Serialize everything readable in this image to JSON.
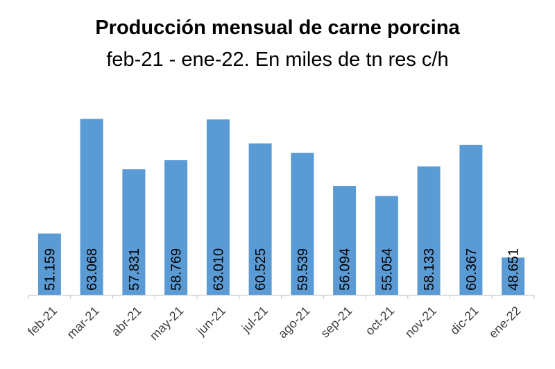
{
  "chart_data": {
    "type": "bar",
    "title": "Producción mensual de carne porcina",
    "subtitle": "feb-21 - ene-22. En miles de tn res c/h",
    "xlabel": "",
    "ylabel": "",
    "categories": [
      "feb-21",
      "mar-21",
      "abr-21",
      "may-21",
      "jun-21",
      "jul-21",
      "ago-21",
      "sep-21",
      "oct-21",
      "nov-21",
      "dic-21",
      "ene-22"
    ],
    "values": [
      51.159,
      63.068,
      57.831,
      58.769,
      63.01,
      60.525,
      59.539,
      56.094,
      55.054,
      58.133,
      60.367,
      48.651
    ],
    "data_labels": [
      "51.159",
      "63.068",
      "57.831",
      "58.769",
      "63.010",
      "60.525",
      "59.539",
      "56.094",
      "55.054",
      "58.133",
      "60.367",
      "48.651"
    ],
    "ylim": [
      44.78,
      63.1
    ],
    "grid": false,
    "legend": "none",
    "bar_color": "#5b9bd5",
    "axis_color": "#bfbfbf"
  }
}
